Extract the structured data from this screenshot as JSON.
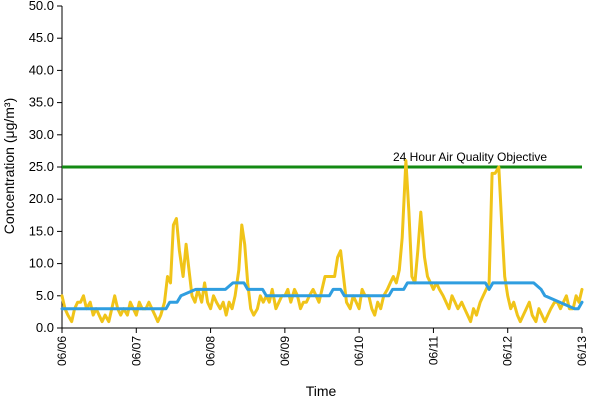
{
  "chart_data": {
    "type": "line",
    "title": "",
    "xlabel": "Time",
    "ylabel": "Concentration (μg/m³)",
    "ylim": [
      0,
      50
    ],
    "yticks": [
      "0.0",
      "5.0",
      "10.0",
      "15.0",
      "20.0",
      "25.0",
      "30.0",
      "35.0",
      "40.0",
      "45.0",
      "50.0"
    ],
    "xlim": [
      "06/06",
      "06/13"
    ],
    "xticks": [
      "06/06",
      "06/07",
      "06/08",
      "06/09",
      "06/10",
      "06/11",
      "06/12",
      "06/13"
    ],
    "grid": false,
    "legend": "none",
    "objective": {
      "label": "24 Hour Air Quality Objective",
      "value": 25,
      "color": "#138a13"
    },
    "series": [
      {
        "color": "#f0c419",
        "x": [
          0.0,
          0.04,
          0.08,
          0.13,
          0.17,
          0.21,
          0.25,
          0.29,
          0.33,
          0.38,
          0.42,
          0.46,
          0.5,
          0.54,
          0.58,
          0.63,
          0.67,
          0.71,
          0.75,
          0.79,
          0.83,
          0.88,
          0.92,
          0.96,
          1.0,
          1.04,
          1.08,
          1.13,
          1.17,
          1.21,
          1.25,
          1.29,
          1.33,
          1.38,
          1.42,
          1.46,
          1.5,
          1.54,
          1.58,
          1.63,
          1.67,
          1.71,
          1.75,
          1.79,
          1.83,
          1.88,
          1.92,
          1.96,
          2.0,
          2.04,
          2.08,
          2.13,
          2.17,
          2.21,
          2.25,
          2.29,
          2.33,
          2.38,
          2.42,
          2.46,
          2.5,
          2.54,
          2.58,
          2.63,
          2.67,
          2.71,
          2.75,
          2.79,
          2.83,
          2.88,
          2.92,
          2.96,
          3.0,
          3.04,
          3.08,
          3.13,
          3.17,
          3.21,
          3.25,
          3.29,
          3.33,
          3.38,
          3.42,
          3.46,
          3.5,
          3.54,
          3.58,
          3.63,
          3.67,
          3.71,
          3.75,
          3.79,
          3.83,
          3.88,
          3.92,
          3.96,
          4.0,
          4.04,
          4.08,
          4.13,
          4.17,
          4.21,
          4.25,
          4.29,
          4.33,
          4.38,
          4.42,
          4.46,
          4.5,
          4.54,
          4.58,
          4.63,
          4.67,
          4.71,
          4.75,
          4.79,
          4.83,
          4.88,
          4.92,
          4.96,
          5.0,
          5.04,
          5.08,
          5.13,
          5.17,
          5.21,
          5.25,
          5.29,
          5.33,
          5.38,
          5.42,
          5.46,
          5.5,
          5.54,
          5.58,
          5.63,
          5.67,
          5.71,
          5.75,
          5.79,
          5.83,
          5.88,
          5.92,
          5.96,
          6.0,
          6.04,
          6.08,
          6.13,
          6.17,
          6.21,
          6.25,
          6.29,
          6.33,
          6.38,
          6.42,
          6.46,
          6.5,
          6.54,
          6.58,
          6.63,
          6.67,
          6.71,
          6.75,
          6.79,
          6.83,
          6.88,
          6.92,
          6.96,
          7.0
        ],
        "values": [
          5,
          3,
          2,
          1,
          3,
          4,
          4,
          5,
          3,
          4,
          2,
          3,
          2,
          1,
          2,
          1,
          3,
          5,
          3,
          2,
          3,
          2,
          4,
          3,
          2,
          4,
          3,
          3,
          4,
          3,
          2,
          1,
          2,
          4,
          8,
          7,
          16,
          17,
          12,
          8,
          13,
          9,
          5,
          4,
          6,
          4,
          7,
          4,
          3,
          5,
          4,
          3,
          4,
          2,
          4,
          3,
          5,
          9,
          16,
          13,
          7,
          3,
          2,
          3,
          5,
          4,
          5,
          4,
          6,
          3,
          4,
          5,
          5,
          6,
          4,
          6,
          5,
          3,
          4,
          4,
          5,
          6,
          5,
          4,
          6,
          8,
          8,
          8,
          8,
          11,
          12,
          8,
          4,
          3,
          5,
          4,
          3,
          6,
          5,
          5,
          3,
          2,
          4,
          3,
          5,
          6,
          7,
          8,
          7,
          9,
          14,
          26,
          18,
          8,
          7,
          12,
          18,
          11,
          8,
          7,
          6,
          7,
          6,
          5,
          4,
          3,
          5,
          4,
          3,
          4,
          3,
          2,
          1,
          3,
          2,
          4,
          5,
          6,
          7,
          24,
          24,
          25,
          16,
          8,
          5,
          3,
          4,
          2,
          1,
          2,
          3,
          4,
          2,
          1,
          3,
          2,
          1,
          2,
          3,
          4,
          4,
          3,
          4,
          5,
          3,
          3,
          5,
          4,
          6
        ]
      },
      {
        "color": "#2f9ee0",
        "x": [
          0,
          1.4,
          1.45,
          1.55,
          1.6,
          1.8,
          2.2,
          2.3,
          2.45,
          2.5,
          2.7,
          2.75,
          3.6,
          3.65,
          3.75,
          3.8,
          4.4,
          4.45,
          4.6,
          4.65,
          5.7,
          5.75,
          5.8,
          5.9,
          6.3,
          6.35,
          6.45,
          6.5,
          6.9,
          6.95,
          7.0
        ],
        "values": [
          3,
          3,
          4,
          4,
          5,
          6,
          6,
          7,
          7,
          6,
          6,
          5,
          5,
          6,
          6,
          5,
          5,
          6,
          6,
          7,
          7,
          6,
          7,
          7,
          7,
          7,
          6,
          5,
          3,
          3,
          4
        ]
      }
    ]
  }
}
